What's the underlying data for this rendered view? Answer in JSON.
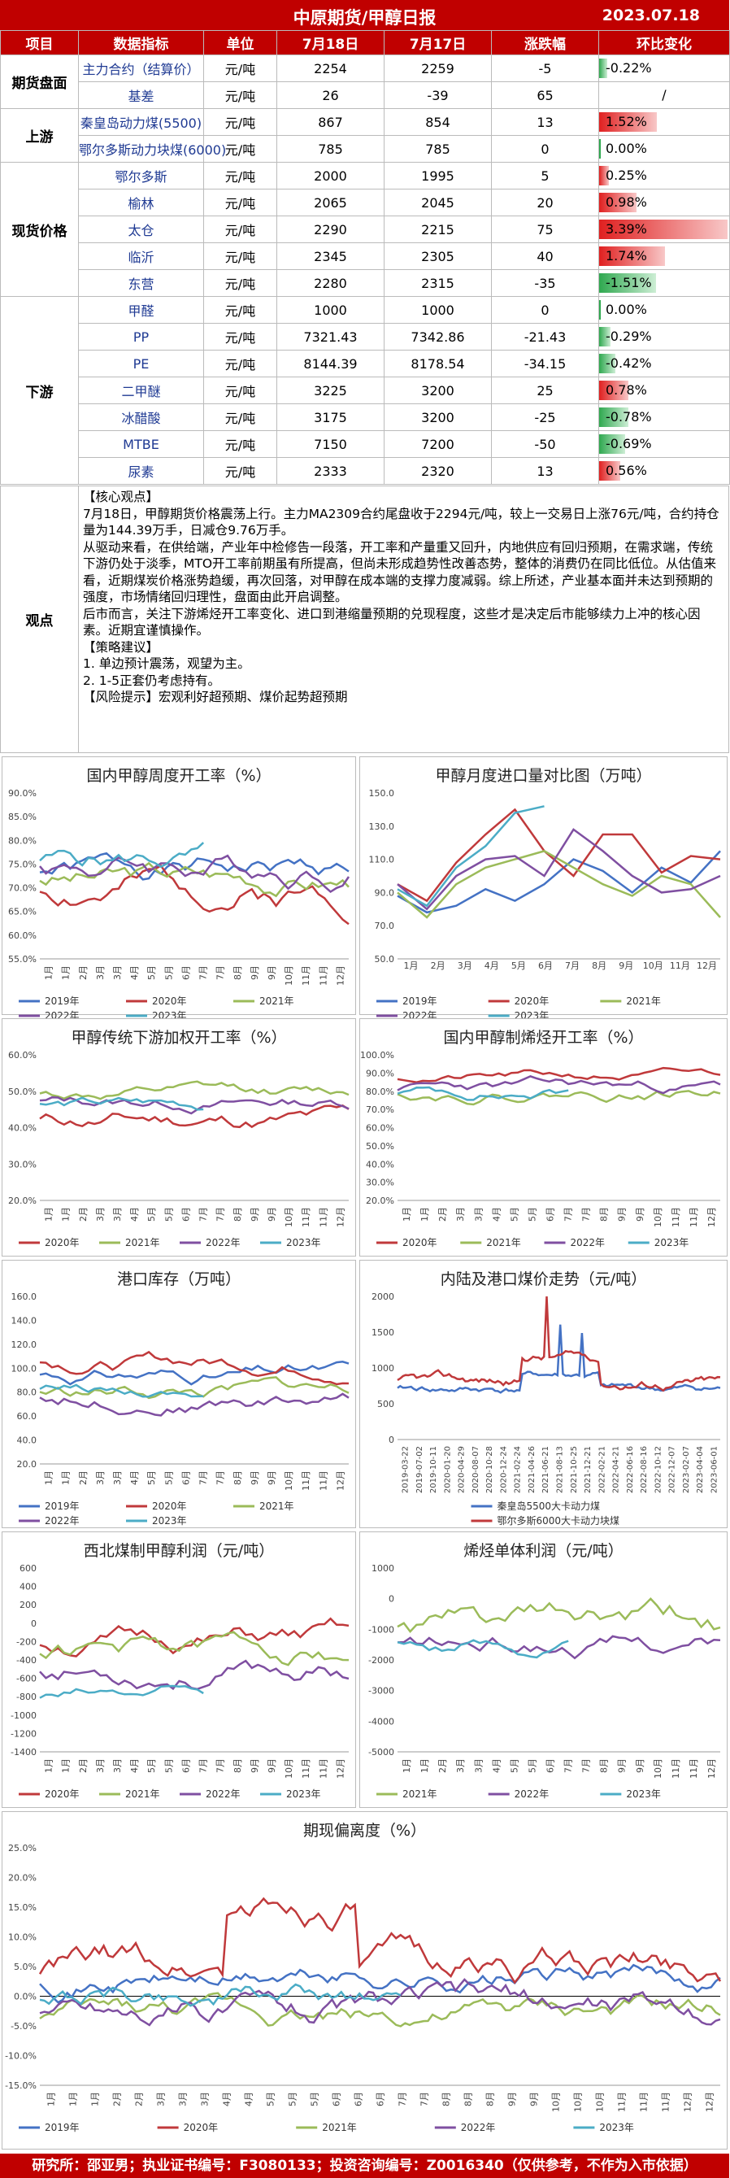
{
  "header": {
    "title": "中原期货/甲醇日报",
    "date": "2023.07.18"
  },
  "table": {
    "headers": [
      "项目",
      "数据指标",
      "单位",
      "7月18日",
      "7月17日",
      "涨跌幅",
      "环比变化"
    ],
    "sections": [
      {
        "cat": "期货盘面",
        "rows": [
          {
            "name": "主力合约（结算价）",
            "unit": "元/吨",
            "d1": "2254",
            "d0": "2259",
            "chg": "-5",
            "pct": "-0.22%",
            "p": -0.22
          },
          {
            "name": "基差",
            "unit": "元/吨",
            "d1": "26",
            "d0": "-39",
            "chg": "65",
            "pct": "/",
            "p": 0
          }
        ]
      },
      {
        "cat": "上游",
        "rows": [
          {
            "name": "秦皇岛动力煤(5500)",
            "unit": "元/吨",
            "d1": "867",
            "d0": "854",
            "chg": "13",
            "pct": "1.52%",
            "p": 1.52
          },
          {
            "name": "鄂尔多斯动力块煤(6000)",
            "unit": "元/吨",
            "d1": "785",
            "d0": "785",
            "chg": "0",
            "pct": "0.00%",
            "p": 0
          }
        ]
      },
      {
        "cat": "现货价格",
        "rows": [
          {
            "name": "鄂尔多斯",
            "unit": "元/吨",
            "d1": "2000",
            "d0": "1995",
            "chg": "5",
            "pct": "0.25%",
            "p": 0.25
          },
          {
            "name": "榆林",
            "unit": "元/吨",
            "d1": "2065",
            "d0": "2045",
            "chg": "20",
            "pct": "0.98%",
            "p": 0.98
          },
          {
            "name": "太仓",
            "unit": "元/吨",
            "d1": "2290",
            "d0": "2215",
            "chg": "75",
            "pct": "3.39%",
            "p": 3.39
          },
          {
            "name": "临沂",
            "unit": "元/吨",
            "d1": "2345",
            "d0": "2305",
            "chg": "40",
            "pct": "1.74%",
            "p": 1.74
          },
          {
            "name": "东营",
            "unit": "元/吨",
            "d1": "2280",
            "d0": "2315",
            "chg": "-35",
            "pct": "-1.51%",
            "p": -1.51
          }
        ]
      },
      {
        "cat": "下游",
        "rows": [
          {
            "name": "甲醛",
            "unit": "元/吨",
            "d1": "1000",
            "d0": "1000",
            "chg": "0",
            "pct": "0.00%",
            "p": 0
          },
          {
            "name": "PP",
            "unit": "元/吨",
            "d1": "7321.43",
            "d0": "7342.86",
            "chg": "-21.43",
            "pct": "-0.29%",
            "p": -0.29
          },
          {
            "name": "PE",
            "unit": "元/吨",
            "d1": "8144.39",
            "d0": "8178.54",
            "chg": "-34.15",
            "pct": "-0.42%",
            "p": -0.42
          },
          {
            "name": "二甲醚",
            "unit": "元/吨",
            "d1": "3225",
            "d0": "3200",
            "chg": "25",
            "pct": "0.78%",
            "p": 0.78
          },
          {
            "name": "冰醋酸",
            "unit": "元/吨",
            "d1": "3175",
            "d0": "3200",
            "chg": "-25",
            "pct": "-0.78%",
            "p": -0.78
          },
          {
            "name": "MTBE",
            "unit": "元/吨",
            "d1": "7150",
            "d0": "7200",
            "chg": "-50",
            "pct": "-0.69%",
            "p": -0.69
          },
          {
            "name": "尿素",
            "unit": "元/吨",
            "d1": "2333",
            "d0": "2320",
            "chg": "13",
            "pct": "0.56%",
            "p": 0.56
          }
        ]
      }
    ]
  },
  "view": {
    "label": "观点",
    "lines": [
      "【核心观点】",
      "7月18日，甲醇期货价格震荡上行。主力MA2309合约尾盘收于2294元/吨，较上一交易日上涨76元/吨，合约持仓量为144.39万手，日减仓9.76万手。",
      "从驱动来看，在供给端，产业年中检修告一段落，开工率和产量重又回升，内地供应有回归预期，在需求端，传统下游仍处于淡季，MTO开工率前期虽有所提高，但尚未形成趋势性改善态势，整体的消费仍在同比低位。从估值来看，近期煤炭价格涨势趋缓，再次回落，对甲醇在成本端的支撑力度减弱。综上所述，产业基本面并未达到预期的强度，市场情绪回归理性，盘面由此开启调整。",
      "后市而言，关注下游烯烃开工率变化、进口到港缩量预期的兑现程度，这些才是决定后市能够续力上冲的核心因素。近期宜谨慎操作。",
      "【策略建议】",
      "1. 单边预计震荡，观望为主。",
      "2. 1-5正套仍考虑持有。",
      "   【风险提示】宏观利好超预期、煤价起势超预期"
    ]
  },
  "colors": {
    "s2019": "#4472c4",
    "s2020": "#c0393b",
    "s2021": "#9bbb59",
    "s2022": "#7f4fa1",
    "s2023": "#4bacc6",
    "red": "#c00000"
  },
  "charts": [
    {
      "id": "c1",
      "title": "国内甲醇周度开工率（%）",
      "ylim": [
        55,
        90
      ],
      "yticks": [
        "90.0%",
        "85.0%",
        "80.0%",
        "75.0%",
        "70.0%",
        "65.0%",
        "60.0%",
        "55.0%"
      ],
      "xticks": [
        "1月",
        "1月",
        "2月",
        "3月",
        "3月",
        "4月",
        "5月",
        "5月",
        "6月",
        "7月",
        "7月",
        "8月",
        "9月",
        "9月",
        "10月",
        "11月",
        "11月",
        "12月"
      ],
      "legend": [
        "2019年",
        "2020年",
        "2021年",
        "2022年",
        "2023年"
      ]
    },
    {
      "id": "c2",
      "title": "甲醇月度进口量对比图（万吨）",
      "ylim": [
        50,
        150
      ],
      "yticks": [
        "150.0",
        "130.0",
        "110.0",
        "90.0",
        "70.0",
        "50.0"
      ],
      "xticks": [
        "1月",
        "2月",
        "3月",
        "4月",
        "5月",
        "6月",
        "7月",
        "8月",
        "9月",
        "10月",
        "11月",
        "12月"
      ],
      "legend": [
        "2019年",
        "2020年",
        "2021年",
        "2022年",
        "2023年"
      ]
    },
    {
      "id": "c3",
      "title": "甲醇传统下游加权开工率（%）",
      "ylim": [
        20,
        60
      ],
      "yticks": [
        "60.0%",
        "50.0%",
        "40.0%",
        "30.0%",
        "20.0%"
      ],
      "xticks": [
        "1月",
        "1月",
        "2月",
        "3月",
        "3月",
        "4月",
        "5月",
        "5月",
        "6月",
        "7月",
        "7月",
        "8月",
        "9月",
        "9月",
        "10月",
        "11月",
        "11月",
        "12月"
      ],
      "legend": [
        "2020年",
        "2021年",
        "2022年",
        "2023年"
      ]
    },
    {
      "id": "c4",
      "title": "国内甲醇制烯烃开工率（%）",
      "ylim": [
        20,
        100
      ],
      "yticks": [
        "100.0%",
        "90.0%",
        "80.0%",
        "70.0%",
        "60.0%",
        "50.0%",
        "40.0%",
        "30.0%",
        "20.0%"
      ],
      "xticks": [
        "1月",
        "1月",
        "2月",
        "3月",
        "3月",
        "4月",
        "5月",
        "5月",
        "6月",
        "7月",
        "7月",
        "8月",
        "9月",
        "9月",
        "10月",
        "11月",
        "11月",
        "12月"
      ],
      "legend": [
        "2020年",
        "2021年",
        "2022年",
        "2023年"
      ]
    },
    {
      "id": "c5",
      "title": "港口库存（万吨）",
      "ylim": [
        20,
        160
      ],
      "yticks": [
        "160.0",
        "140.0",
        "120.0",
        "100.0",
        "80.0",
        "60.0",
        "40.0",
        "20.0"
      ],
      "xticks": [
        "1月",
        "1月",
        "2月",
        "3月",
        "3月",
        "4月",
        "5月",
        "5月",
        "6月",
        "7月",
        "7月",
        "8月",
        "9月",
        "9月",
        "10月",
        "11月",
        "11月",
        "12月"
      ],
      "legend": [
        "2019年",
        "2020年",
        "2021年",
        "2022年",
        "2023年"
      ]
    },
    {
      "id": "c6",
      "title": "内陆及港口煤价走势（元/吨）",
      "ylim": [
        0,
        2000
      ],
      "yticks": [
        "2000",
        "1500",
        "1000",
        "500",
        "0"
      ],
      "xticks": [
        "2019-03-22",
        "2019-07-02",
        "2019-10-11",
        "2020-01-20",
        "2020-04-29",
        "2020-08-07",
        "2020-10-28",
        "2020-12-24",
        "2021-02-24",
        "2021-04-26",
        "2021-06-21",
        "2021-08-13",
        "2021-10-25",
        "2021-12-21",
        "2022-02-21",
        "2022-04-21",
        "2022-06-16",
        "2022-08-16",
        "2022-10-12",
        "2022-12-07",
        "2023-02-07",
        "2023-04-04",
        "2023-06-01"
      ],
      "legend": [
        "秦皇岛5500大卡动力煤",
        "鄂尔多斯6000大卡动力块煤"
      ]
    },
    {
      "id": "c7",
      "title": "西北煤制甲醇利润（元/吨）",
      "ylim": [
        -1400,
        600
      ],
      "yticks": [
        "600",
        "400",
        "200",
        "0",
        "-200",
        "-400",
        "-600",
        "-800",
        "-1000",
        "-1200",
        "-1400"
      ],
      "xticks": [
        "1月",
        "1月",
        "2月",
        "3月",
        "3月",
        "4月",
        "5月",
        "5月",
        "6月",
        "7月",
        "7月",
        "8月",
        "9月",
        "9月",
        "10月",
        "11月",
        "11月",
        "12月"
      ],
      "legend": [
        "2020年",
        "2021年",
        "2022年",
        "2023年"
      ]
    },
    {
      "id": "c8",
      "title": "烯烃单体利润（元/吨）",
      "ylim": [
        -5000,
        1000
      ],
      "yticks": [
        "1000",
        "0",
        "-1000",
        "-2000",
        "-3000",
        "-4000",
        "-5000"
      ],
      "xticks": [
        "1月",
        "1月",
        "2月",
        "3月",
        "3月",
        "4月",
        "5月",
        "5月",
        "6月",
        "7月",
        "7月",
        "8月",
        "9月",
        "9月",
        "10月",
        "11月",
        "11月",
        "12月"
      ],
      "legend": [
        "2021年",
        "2022年",
        "2023年"
      ]
    },
    {
      "id": "c9",
      "title": "期现偏离度（%）",
      "ylim": [
        -15,
        25
      ],
      "yticks": [
        "25.0%",
        "20.0%",
        "15.0%",
        "10.0%",
        "5.0%",
        "0.0%",
        "-5.0%",
        "-10.0%",
        "-15.0%"
      ],
      "xticks": [
        "1月",
        "1月",
        "1月",
        "2月",
        "2月",
        "3月",
        "3月",
        "3月",
        "4月",
        "4月",
        "5月",
        "5月",
        "5月",
        "6月",
        "6月",
        "6月",
        "7月",
        "7月",
        "8月",
        "8月",
        "8月",
        "9月",
        "9月",
        "10月",
        "10月",
        "10月",
        "11月",
        "11月",
        "11月",
        "12月",
        "12月"
      ],
      "legend": [
        "2019年",
        "2020年",
        "2021年",
        "2022年",
        "2023年"
      ]
    }
  ],
  "footer": "研究所：邵亚男；执业证书编号：F3080133；投资咨询编号：Z0016340（仅供参考，不作为入市依据）"
}
